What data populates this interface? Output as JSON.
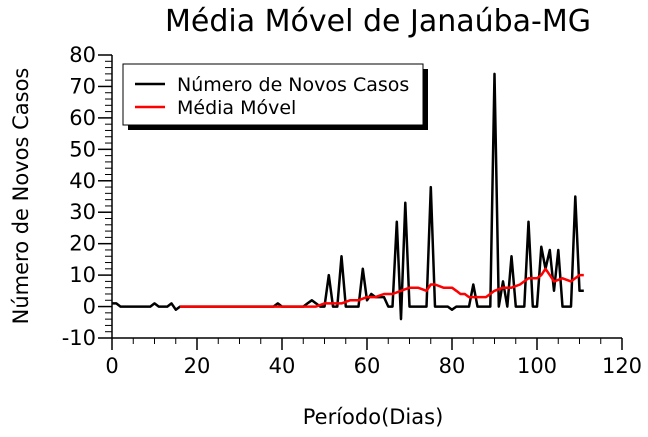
{
  "chart_data": {
    "type": "line",
    "title": "Média Móvel de Janaúba-MG",
    "xlabel": "Período(Dias)",
    "ylabel": "Número de Novos Casos",
    "xlim": [
      0,
      120
    ],
    "ylim": [
      -10,
      80
    ],
    "x_ticks": [
      0,
      20,
      40,
      60,
      80,
      100,
      120
    ],
    "y_ticks": [
      -10,
      0,
      10,
      20,
      30,
      40,
      50,
      60,
      70,
      80
    ],
    "legend_position": "top-left",
    "series": [
      {
        "name": "Número de Novos Casos",
        "color": "#000000",
        "x": [
          0,
          1,
          2,
          3,
          4,
          5,
          6,
          7,
          8,
          9,
          10,
          11,
          12,
          13,
          14,
          15,
          16,
          17,
          18,
          19,
          20,
          21,
          22,
          23,
          24,
          25,
          26,
          27,
          28,
          29,
          30,
          31,
          32,
          33,
          34,
          35,
          36,
          37,
          38,
          39,
          40,
          41,
          42,
          43,
          44,
          45,
          46,
          47,
          48,
          49,
          50,
          51,
          52,
          53,
          54,
          55,
          56,
          57,
          58,
          59,
          60,
          61,
          62,
          63,
          64,
          65,
          66,
          67,
          68,
          69,
          70,
          71,
          72,
          73,
          74,
          75,
          76,
          77,
          78,
          79,
          80,
          81,
          82,
          83,
          84,
          85,
          86,
          87,
          88,
          89,
          90,
          91,
          92,
          93,
          94,
          95,
          96,
          97,
          98,
          99,
          100,
          101,
          102,
          103,
          104,
          105,
          106,
          107,
          108,
          109,
          110,
          111
        ],
        "values": [
          1,
          1,
          0,
          0,
          0,
          0,
          0,
          0,
          0,
          0,
          1,
          0,
          0,
          0,
          1,
          -1,
          0,
          0,
          0,
          0,
          0,
          0,
          0,
          0,
          0,
          0,
          0,
          0,
          0,
          0,
          0,
          0,
          0,
          0,
          0,
          0,
          0,
          0,
          0,
          1,
          0,
          0,
          0,
          0,
          0,
          0,
          1,
          2,
          1,
          0,
          0,
          10,
          0,
          0,
          16,
          0,
          0,
          0,
          0,
          12,
          2,
          4,
          3,
          3,
          3,
          0,
          0,
          27,
          -4,
          33,
          0,
          0,
          0,
          0,
          0,
          38,
          0,
          0,
          0,
          0,
          -1,
          0,
          0,
          0,
          0,
          7,
          0,
          0,
          0,
          0,
          74,
          0,
          8,
          0,
          16,
          0,
          0,
          0,
          27,
          0,
          0,
          19,
          12,
          18,
          5,
          18,
          0,
          0,
          0,
          35,
          5,
          5
        ]
      },
      {
        "name": "Média Móvel",
        "color": "#ff0000",
        "x": [
          16,
          20,
          25,
          30,
          35,
          40,
          45,
          48,
          50,
          52,
          54,
          56,
          58,
          60,
          62,
          64,
          66,
          68,
          70,
          72,
          74,
          75,
          76,
          78,
          80,
          81,
          82,
          83,
          84,
          86,
          88,
          90,
          92,
          94,
          96,
          98,
          100,
          101,
          102,
          103,
          104,
          106,
          108,
          110,
          111
        ],
        "values": [
          0,
          0,
          0,
          0,
          0,
          0,
          0,
          0,
          1,
          1,
          1,
          2,
          2,
          3,
          3,
          4,
          4,
          5,
          6,
          6,
          5,
          7,
          7,
          6,
          6,
          5,
          4,
          4,
          3,
          3,
          3,
          5,
          6,
          6,
          7,
          9,
          9,
          10,
          12,
          10,
          8,
          9,
          8,
          10,
          10
        ]
      }
    ]
  }
}
